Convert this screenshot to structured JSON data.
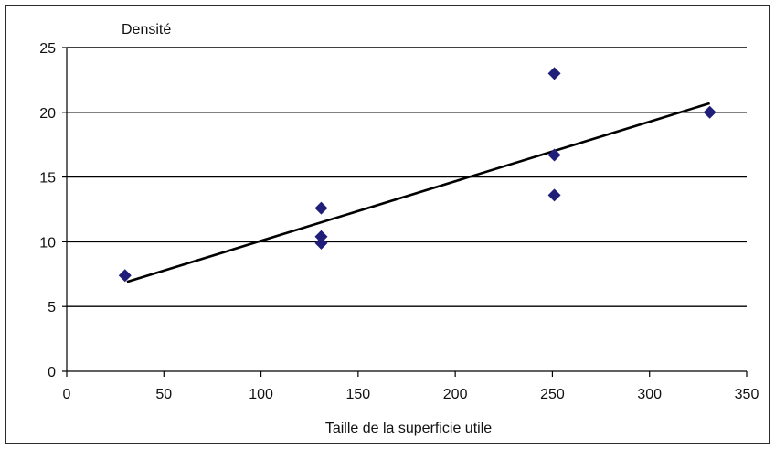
{
  "chart_data": {
    "type": "scatter",
    "title": "",
    "ylabel": "Densité",
    "xlabel": "Taille de la superficie utile",
    "xlim": [
      0,
      350
    ],
    "ylim": [
      0,
      25
    ],
    "xticks": [
      0,
      50,
      100,
      150,
      200,
      250,
      300,
      350
    ],
    "yticks": [
      0,
      5,
      10,
      15,
      20,
      25
    ],
    "grid": "horizontal",
    "legend": "none",
    "series": [
      {
        "marker": "diamond",
        "color": "#1f1f7a",
        "points": [
          {
            "x": 30,
            "y": 7.4
          },
          {
            "x": 131,
            "y": 12.6
          },
          {
            "x": 131,
            "y": 10.4
          },
          {
            "x": 131,
            "y": 9.9
          },
          {
            "x": 251,
            "y": 23.0
          },
          {
            "x": 251,
            "y": 16.7
          },
          {
            "x": 251,
            "y": 13.6
          },
          {
            "x": 331,
            "y": 20.0
          }
        ]
      }
    ],
    "trendline": {
      "type": "linear",
      "color": "#000000",
      "start": {
        "x": 31,
        "y": 6.9
      },
      "end": {
        "x": 331,
        "y": 20.7
      }
    }
  }
}
